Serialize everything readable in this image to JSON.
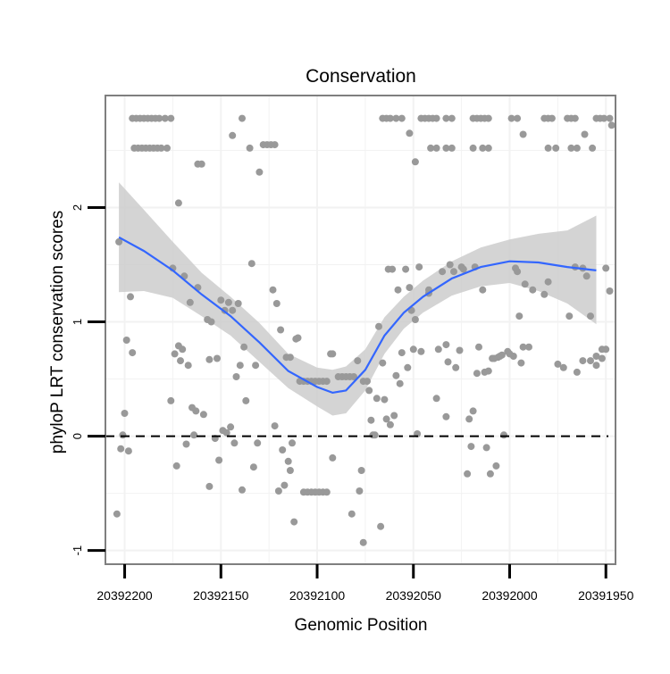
{
  "chart_data": {
    "type": "scatter",
    "title": "Conservation",
    "xlabel": "Genomic Position",
    "ylabel": "phyloP LRT conservation scores",
    "x_reversed": true,
    "xlim": [
      20392210,
      20391945
    ],
    "ylim": [
      -1.12,
      2.98
    ],
    "x_ticks": [
      20392200,
      20392150,
      20392100,
      20392050,
      20392000,
      20391950
    ],
    "x_tick_labels": [
      "20392200",
      "20392150",
      "20392100",
      "20392050",
      "20392000",
      "20391950"
    ],
    "y_ticks": [
      -1,
      0,
      1,
      2
    ],
    "y_tick_labels": [
      "-1",
      "0",
      "1",
      "2"
    ],
    "grid": true,
    "reference_line_y": 0,
    "colors": {
      "points": "#999999",
      "smooth": "#3366ff",
      "ribbon": "#cccccc",
      "frame": "#7f7f7f",
      "grid": "#f2f2f2"
    },
    "points": [
      [
        20392203,
        1.7
      ],
      [
        20392204,
        -0.68
      ],
      [
        20392202,
        -0.11
      ],
      [
        20392201,
        0.01
      ],
      [
        20392200,
        0.2
      ],
      [
        20392199,
        0.84
      ],
      [
        20392198,
        -0.13
      ],
      [
        20392197,
        1.22
      ],
      [
        20392196,
        0.73
      ],
      [
        20392196,
        2.78
      ],
      [
        20392194,
        2.78
      ],
      [
        20392192,
        2.78
      ],
      [
        20392190,
        2.78
      ],
      [
        20392188,
        2.78
      ],
      [
        20392186,
        2.78
      ],
      [
        20392184,
        2.78
      ],
      [
        20392182,
        2.78
      ],
      [
        20392179,
        2.78
      ],
      [
        20392176,
        2.78
      ],
      [
        20392195,
        2.52
      ],
      [
        20392193,
        2.52
      ],
      [
        20392191,
        2.52
      ],
      [
        20392189,
        2.52
      ],
      [
        20392187,
        2.52
      ],
      [
        20392185,
        2.52
      ],
      [
        20392183,
        2.52
      ],
      [
        20392181,
        2.52
      ],
      [
        20392178,
        2.52
      ],
      [
        20392176,
        0.31
      ],
      [
        20392175,
        1.47
      ],
      [
        20392174,
        0.72
      ],
      [
        20392173,
        -0.26
      ],
      [
        20392172,
        2.04
      ],
      [
        20392172,
        0.79
      ],
      [
        20392171,
        0.66
      ],
      [
        20392170,
        0.76
      ],
      [
        20392169,
        1.4
      ],
      [
        20392168,
        -0.07
      ],
      [
        20392167,
        0.62
      ],
      [
        20392166,
        1.17
      ],
      [
        20392165,
        0.25
      ],
      [
        20392164,
        0.01
      ],
      [
        20392163,
        0.22
      ],
      [
        20392162,
        2.38
      ],
      [
        20392162,
        1.3
      ],
      [
        20392160,
        2.38
      ],
      [
        20392159,
        0.19
      ],
      [
        20392157,
        1.02
      ],
      [
        20392156,
        0.67
      ],
      [
        20392156,
        -0.44
      ],
      [
        20392155,
        1.0
      ],
      [
        20392153,
        -0.02
      ],
      [
        20392152,
        0.68
      ],
      [
        20392151,
        -0.21
      ],
      [
        20392150,
        1.19
      ],
      [
        20392149,
        0.05
      ],
      [
        20392148,
        1.1
      ],
      [
        20392147,
        0.03
      ],
      [
        20392146,
        1.17
      ],
      [
        20392145,
        0.08
      ],
      [
        20392144,
        1.1
      ],
      [
        20392144,
        2.63
      ],
      [
        20392143,
        -0.06
      ],
      [
        20392142,
        0.52
      ],
      [
        20392141,
        1.16
      ],
      [
        20392140,
        0.62
      ],
      [
        20392139,
        -0.47
      ],
      [
        20392139,
        2.78
      ],
      [
        20392138,
        0.78
      ],
      [
        20392137,
        0.31
      ],
      [
        20392135,
        2.52
      ],
      [
        20392134,
        1.51
      ],
      [
        20392133,
        -0.27
      ],
      [
        20392132,
        0.62
      ],
      [
        20392131,
        -0.06
      ],
      [
        20392130,
        2.31
      ],
      [
        20392128,
        2.55
      ],
      [
        20392126,
        2.55
      ],
      [
        20392124,
        2.55
      ],
      [
        20392122,
        2.55
      ],
      [
        20392123,
        1.28
      ],
      [
        20392122,
        0.09
      ],
      [
        20392121,
        1.16
      ],
      [
        20392120,
        -0.48
      ],
      [
        20392119,
        0.93
      ],
      [
        20392118,
        -0.12
      ],
      [
        20392117,
        -0.43
      ],
      [
        20392116,
        0.69
      ],
      [
        20392115,
        -0.22
      ],
      [
        20392114,
        0.69
      ],
      [
        20392114,
        -0.3
      ],
      [
        20392113,
        -0.06
      ],
      [
        20392112,
        -0.75
      ],
      [
        20392111,
        0.85
      ],
      [
        20392110,
        0.86
      ],
      [
        20392109,
        0.48
      ],
      [
        20392107,
        0.48
      ],
      [
        20392105,
        0.48
      ],
      [
        20392103,
        0.48
      ],
      [
        20392101,
        0.48
      ],
      [
        20392099,
        0.48
      ],
      [
        20392097,
        0.48
      ],
      [
        20392095,
        0.48
      ],
      [
        20392107,
        -0.49
      ],
      [
        20392105,
        -0.49
      ],
      [
        20392103,
        -0.49
      ],
      [
        20392101,
        -0.49
      ],
      [
        20392099,
        -0.49
      ],
      [
        20392097,
        -0.49
      ],
      [
        20392095,
        -0.49
      ],
      [
        20392093,
        0.72
      ],
      [
        20392092,
        0.72
      ],
      [
        20392092,
        -0.19
      ],
      [
        20392089,
        0.52
      ],
      [
        20392087,
        0.52
      ],
      [
        20392085,
        0.52
      ],
      [
        20392083,
        0.52
      ],
      [
        20392081,
        0.52
      ],
      [
        20392082,
        -0.68
      ],
      [
        20392079,
        0.66
      ],
      [
        20392078,
        -0.48
      ],
      [
        20392077,
        -0.3
      ],
      [
        20392076,
        -0.93
      ],
      [
        20392076,
        0.48
      ],
      [
        20392074,
        0.48
      ],
      [
        20392073,
        0.4
      ],
      [
        20392072,
        0.14
      ],
      [
        20392071,
        0.01
      ],
      [
        20392070,
        0.01
      ],
      [
        20392069,
        0.33
      ],
      [
        20392068,
        0.96
      ],
      [
        20392067,
        -0.79
      ],
      [
        20392066,
        0.64
      ],
      [
        20392065,
        0.32
      ],
      [
        20392064,
        0.15
      ],
      [
        20392063,
        1.46
      ],
      [
        20392062,
        0.1
      ],
      [
        20392061,
        1.46
      ],
      [
        20392060,
        0.18
      ],
      [
        20392059,
        0.53
      ],
      [
        20392058,
        1.28
      ],
      [
        20392057,
        0.46
      ],
      [
        20392056,
        0.73
      ],
      [
        20392054,
        1.46
      ],
      [
        20392053,
        0.6
      ],
      [
        20392052,
        1.3
      ],
      [
        20392051,
        1.1
      ],
      [
        20392050,
        0.76
      ],
      [
        20392049,
        1.02
      ],
      [
        20392048,
        0.02
      ],
      [
        20392047,
        1.48
      ],
      [
        20392046,
        0.74
      ],
      [
        20392042,
        1.25
      ],
      [
        20392042,
        1.28
      ],
      [
        20392038,
        0.33
      ],
      [
        20392037,
        0.76
      ],
      [
        20392035,
        1.44
      ],
      [
        20392033,
        0.17
      ],
      [
        20392033,
        0.8
      ],
      [
        20392032,
        0.65
      ],
      [
        20392031,
        1.5
      ],
      [
        20392029,
        1.44
      ],
      [
        20392028,
        0.6
      ],
      [
        20392026,
        0.75
      ],
      [
        20392025,
        1.48
      ],
      [
        20392024,
        1.46
      ],
      [
        20392022,
        -0.33
      ],
      [
        20392021,
        0.15
      ],
      [
        20392020,
        -0.09
      ],
      [
        20392019,
        0.22
      ],
      [
        20392018,
        1.48
      ],
      [
        20392017,
        0.55
      ],
      [
        20392016,
        0.78
      ],
      [
        20392014,
        1.28
      ],
      [
        20392013,
        0.56
      ],
      [
        20392012,
        -0.1
      ],
      [
        20392011,
        0.57
      ],
      [
        20392010,
        -0.33
      ],
      [
        20392009,
        0.68
      ],
      [
        20392008,
        0.68
      ],
      [
        20392007,
        -0.26
      ],
      [
        20392006,
        0.69
      ],
      [
        20392005,
        0.7
      ],
      [
        20392004,
        0.71
      ],
      [
        20392003,
        0.01
      ],
      [
        20392001,
        0.74
      ],
      [
        20392000,
        0.72
      ],
      [
        20391998,
        0.7
      ],
      [
        20391997,
        1.47
      ],
      [
        20391996,
        1.44
      ],
      [
        20391995,
        1.05
      ],
      [
        20391994,
        0.64
      ],
      [
        20391993,
        2.64
      ],
      [
        20391992,
        1.33
      ],
      [
        20391988,
        1.28
      ],
      [
        20392066,
        2.78
      ],
      [
        20392064,
        2.78
      ],
      [
        20392062,
        2.78
      ],
      [
        20392059,
        2.78
      ],
      [
        20392056,
        2.78
      ],
      [
        20392052,
        2.65
      ],
      [
        20392049,
        2.4
      ],
      [
        20392046,
        2.78
      ],
      [
        20392044,
        2.78
      ],
      [
        20392042,
        2.78
      ],
      [
        20392040,
        2.78
      ],
      [
        20392038,
        2.78
      ],
      [
        20392033,
        2.78
      ],
      [
        20392030,
        2.78
      ],
      [
        20392041,
        2.52
      ],
      [
        20392038,
        2.52
      ],
      [
        20392033,
        2.52
      ],
      [
        20392030,
        2.52
      ],
      [
        20392019,
        2.78
      ],
      [
        20392017,
        2.78
      ],
      [
        20392015,
        2.78
      ],
      [
        20392013,
        2.78
      ],
      [
        20392011,
        2.78
      ],
      [
        20392019,
        2.52
      ],
      [
        20392014,
        2.52
      ],
      [
        20392011,
        2.52
      ],
      [
        20391999,
        2.78
      ],
      [
        20391996,
        2.78
      ],
      [
        20391982,
        2.78
      ],
      [
        20391980,
        2.78
      ],
      [
        20391978,
        2.78
      ],
      [
        20391970,
        2.78
      ],
      [
        20391968,
        2.78
      ],
      [
        20391966,
        2.78
      ],
      [
        20391980,
        2.52
      ],
      [
        20391976,
        2.52
      ],
      [
        20391968,
        2.52
      ],
      [
        20391965,
        2.52
      ],
      [
        20391961,
        2.64
      ],
      [
        20391965,
        0.56
      ],
      [
        20391962,
        0.66
      ],
      [
        20391958,
        0.66
      ],
      [
        20391955,
        0.62
      ],
      [
        20391952,
        0.76
      ],
      [
        20391950,
        1.47
      ],
      [
        20391948,
        1.27
      ],
      [
        20391947,
        2.72
      ],
      [
        20391993,
        0.78
      ],
      [
        20391990,
        0.78
      ],
      [
        20391982,
        1.24
      ],
      [
        20391980,
        1.35
      ],
      [
        20391975,
        0.63
      ],
      [
        20391972,
        0.6
      ],
      [
        20391969,
        1.05
      ],
      [
        20391966,
        1.48
      ],
      [
        20391962,
        1.47
      ],
      [
        20391960,
        1.4
      ],
      [
        20391958,
        1.05
      ],
      [
        20391955,
        0.7
      ],
      [
        20391952,
        0.68
      ],
      [
        20391950,
        0.76
      ],
      [
        20391957,
        2.52
      ],
      [
        20391955,
        2.78
      ],
      [
        20391953,
        2.78
      ],
      [
        20391951,
        2.78
      ],
      [
        20391948,
        2.78
      ]
    ],
    "smooth": [
      [
        20392203,
        1.74,
        1.26,
        2.22
      ],
      [
        20392190,
        1.62,
        1.27,
        1.98
      ],
      [
        20392175,
        1.45,
        1.21,
        1.7
      ],
      [
        20392160,
        1.24,
        1.05,
        1.43
      ],
      [
        20392145,
        1.05,
        0.88,
        1.22
      ],
      [
        20392130,
        0.82,
        0.65,
        0.99
      ],
      [
        20392115,
        0.57,
        0.42,
        0.72
      ],
      [
        20392100,
        0.43,
        0.26,
        0.6
      ],
      [
        20392092,
        0.38,
        0.18,
        0.58
      ],
      [
        20392085,
        0.4,
        0.2,
        0.61
      ],
      [
        20392075,
        0.58,
        0.4,
        0.76
      ],
      [
        20392065,
        0.88,
        0.72,
        1.04
      ],
      [
        20392055,
        1.08,
        0.94,
        1.22
      ],
      [
        20392045,
        1.22,
        1.08,
        1.36
      ],
      [
        20392030,
        1.38,
        1.23,
        1.53
      ],
      [
        20392015,
        1.48,
        1.31,
        1.65
      ],
      [
        20392000,
        1.53,
        1.34,
        1.72
      ],
      [
        20391985,
        1.52,
        1.27,
        1.77
      ],
      [
        20391970,
        1.48,
        1.16,
        1.8
      ],
      [
        20391955,
        1.45,
        0.98,
        1.93
      ]
    ]
  }
}
